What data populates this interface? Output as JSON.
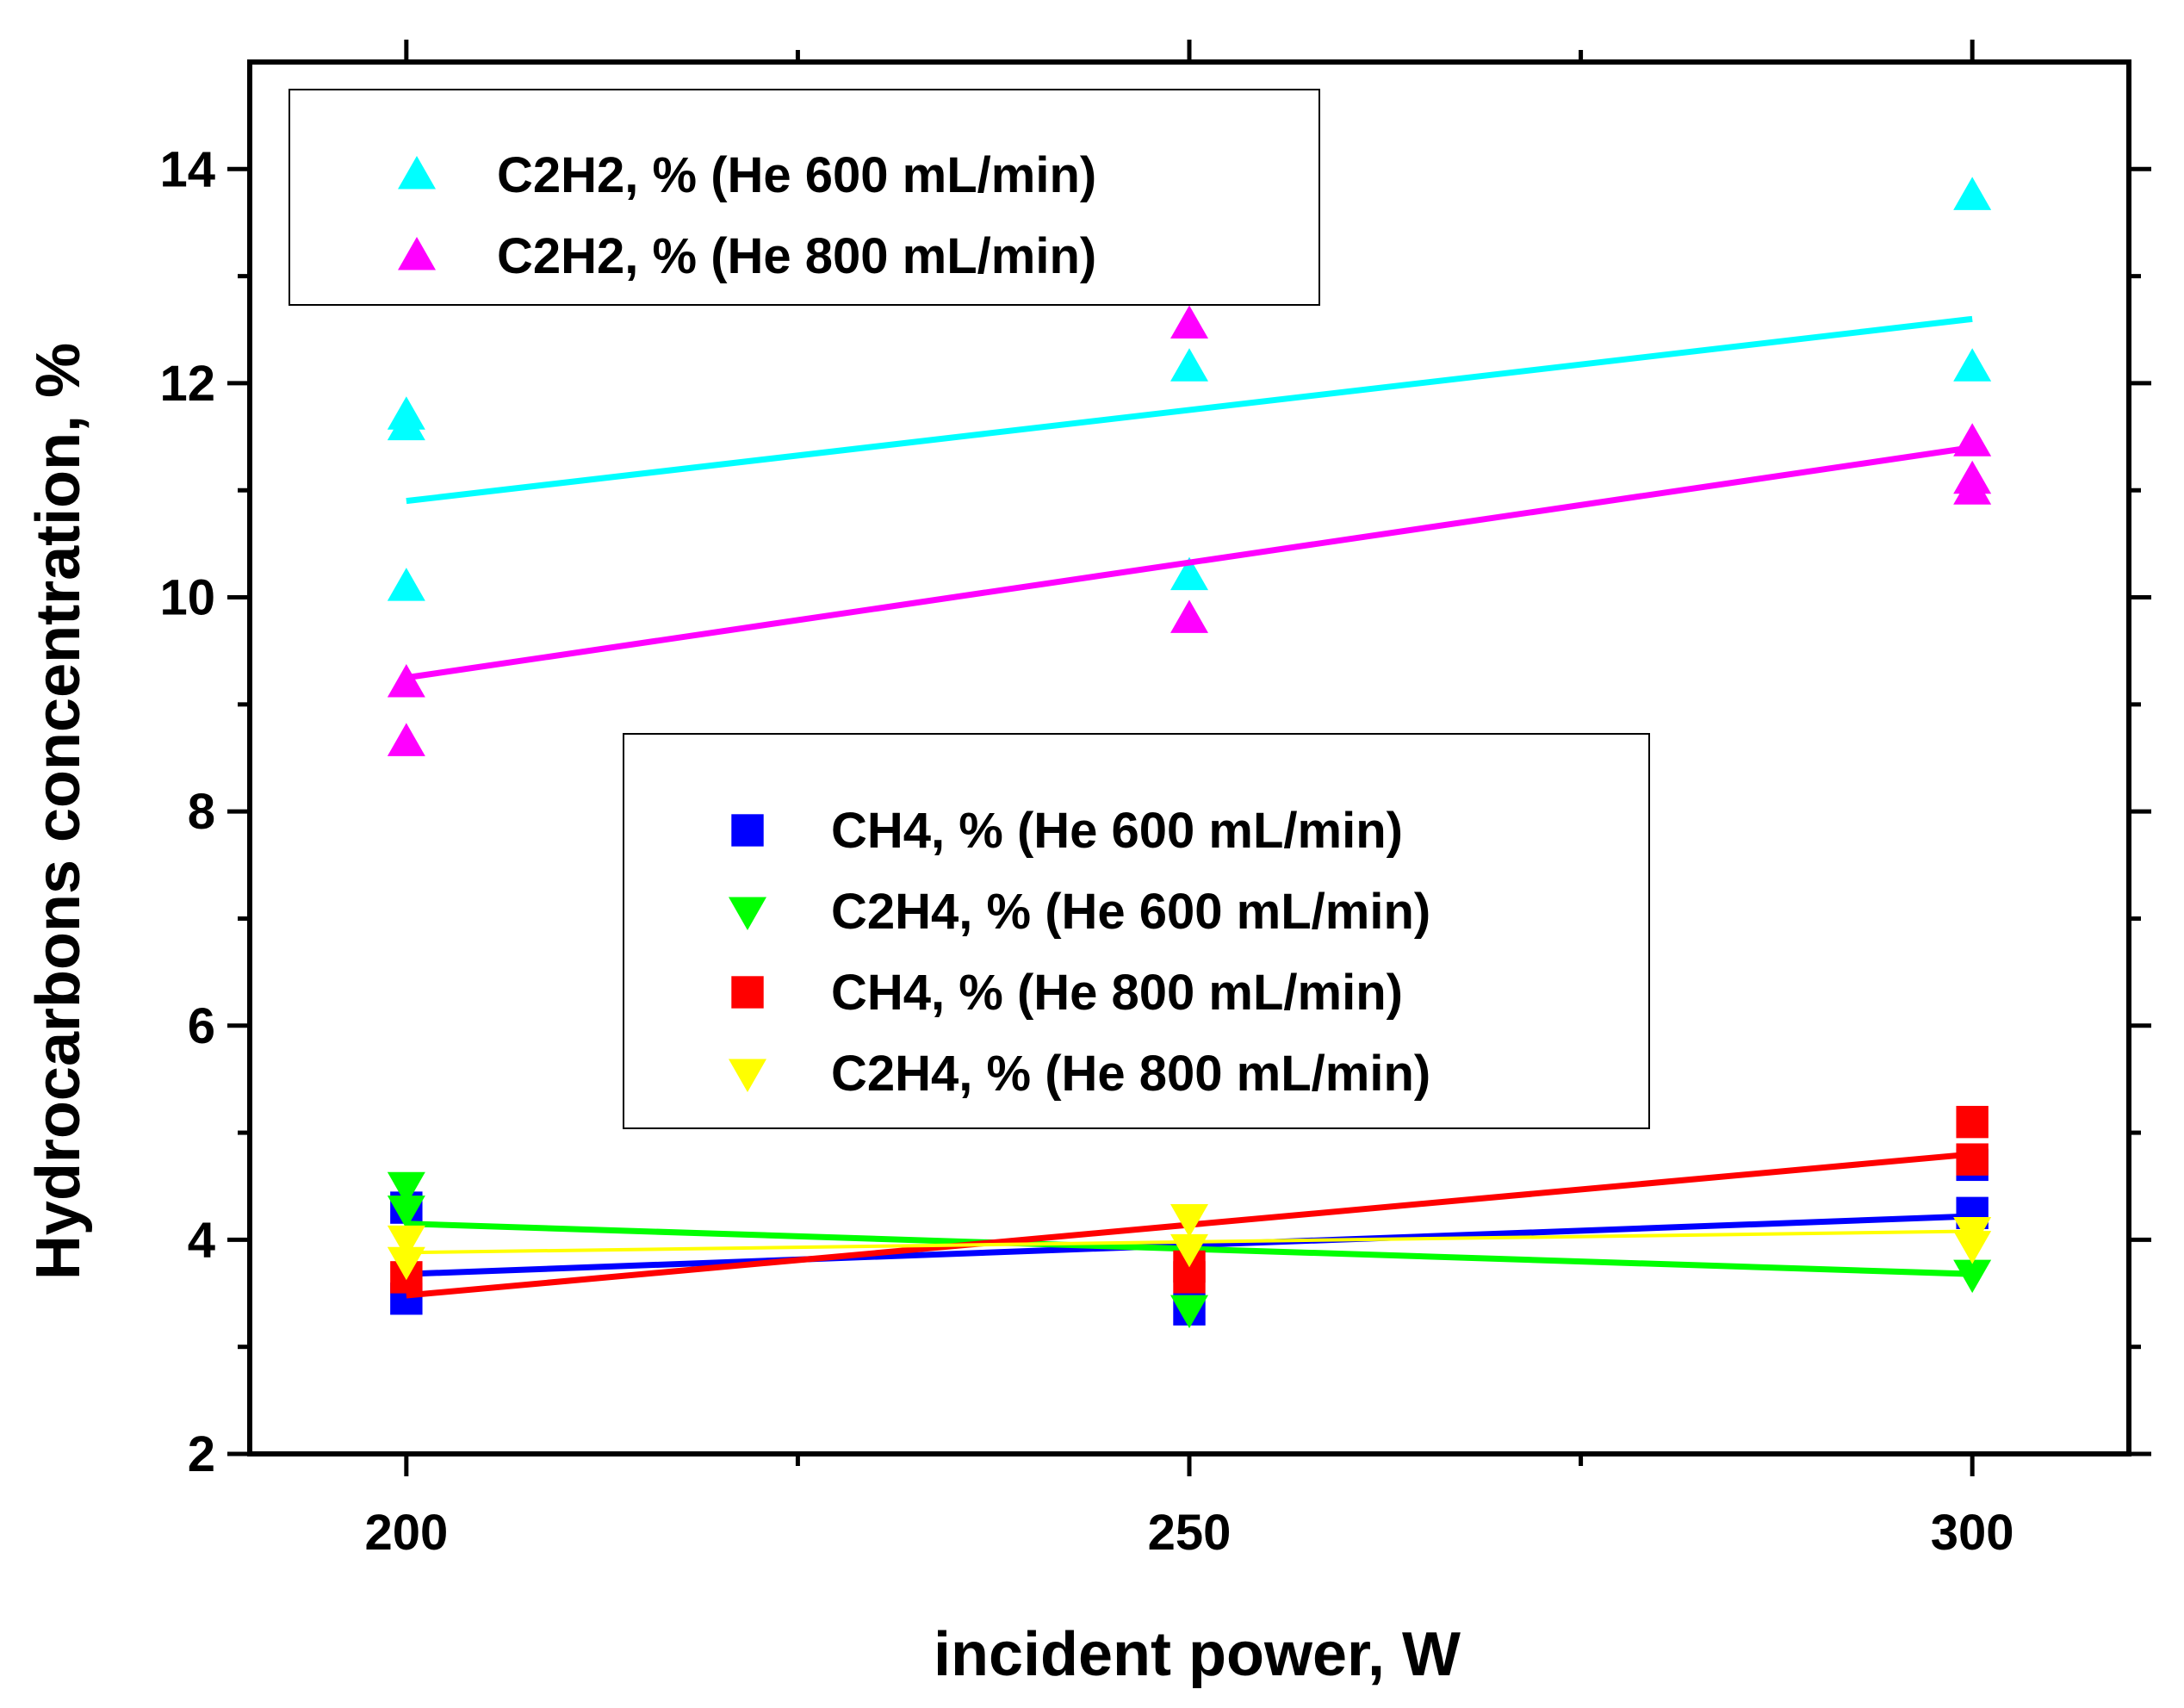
{
  "chart_data": {
    "type": "scatter",
    "xlabel": "incident power, W",
    "ylabel": "Hydrocarbons concentration, %",
    "xlim": [
      190,
      310
    ],
    "ylim": [
      2,
      15
    ],
    "xticks": [
      200,
      250,
      300
    ],
    "xticks_minor": [
      225,
      275
    ],
    "yticks": [
      2,
      4,
      6,
      8,
      10,
      12,
      14
    ],
    "yticks_minor": [
      3,
      5,
      7,
      9,
      11,
      13
    ],
    "legends": [
      {
        "placement": "top-left",
        "entries": [
          0,
          1
        ]
      },
      {
        "placement": "center",
        "entries": [
          2,
          3,
          4,
          5
        ]
      }
    ],
    "series": [
      {
        "name": "C2H2, % (He 600 mL/min)",
        "marker": "triangle-up",
        "color": "#00FFFF",
        "points": [
          [
            200,
            11.7
          ],
          [
            200,
            11.6
          ],
          [
            200,
            10.1
          ],
          [
            250,
            12.15
          ],
          [
            250,
            10.2
          ],
          [
            300,
            13.75
          ],
          [
            300,
            12.15
          ]
        ],
        "fit": [
          [
            200,
            10.9
          ],
          [
            300,
            12.6
          ]
        ],
        "fit_width": 7
      },
      {
        "name": "C2H2, % (He 800 mL/min)",
        "marker": "triangle-up",
        "color": "#FF00FF",
        "points": [
          [
            200,
            9.2
          ],
          [
            200,
            8.65
          ],
          [
            250,
            12.55
          ],
          [
            250,
            9.8
          ],
          [
            300,
            11.45
          ],
          [
            300,
            11.1
          ],
          [
            300,
            11.0
          ]
        ],
        "fit": [
          [
            200,
            9.25
          ],
          [
            300,
            11.4
          ]
        ],
        "fit_width": 7
      },
      {
        "name": "CH4, % (He 600 mL/min)",
        "marker": "square",
        "color": "#0000FF",
        "points": [
          [
            200,
            4.3
          ],
          [
            200,
            3.45
          ],
          [
            250,
            3.35
          ],
          [
            300,
            4.7
          ],
          [
            300,
            4.25
          ]
        ],
        "fit": [
          [
            200,
            3.68
          ],
          [
            300,
            4.22
          ]
        ],
        "fit_width": 7
      },
      {
        "name": "C2H4, % (He 600 mL/min)",
        "marker": "triangle-down",
        "color": "#00FF00",
        "points": [
          [
            200,
            4.5
          ],
          [
            200,
            4.28
          ],
          [
            250,
            3.35
          ],
          [
            300,
            3.68
          ]
        ],
        "fit": [
          [
            200,
            4.15
          ],
          [
            300,
            3.68
          ]
        ],
        "fit_width": 7
      },
      {
        "name": "CH4, % (He 800 mL/min)",
        "marker": "square",
        "color": "#FF0000",
        "points": [
          [
            200,
            3.65
          ],
          [
            250,
            3.75
          ],
          [
            250,
            3.65
          ],
          [
            300,
            5.1
          ],
          [
            300,
            4.75
          ]
        ],
        "fit": [
          [
            200,
            3.48
          ],
          [
            300,
            4.8
          ]
        ],
        "fit_width": 7
      },
      {
        "name": "C2H4, % (He 800 mL/min)",
        "marker": "triangle-down",
        "color": "#FFFF00",
        "points": [
          [
            200,
            4.0
          ],
          [
            200,
            3.8
          ],
          [
            250,
            4.2
          ],
          [
            250,
            3.92
          ],
          [
            300,
            4.08
          ],
          [
            300,
            3.95
          ]
        ],
        "fit": [
          [
            200,
            3.88
          ],
          [
            300,
            4.08
          ]
        ],
        "fit_width": 4
      }
    ]
  }
}
